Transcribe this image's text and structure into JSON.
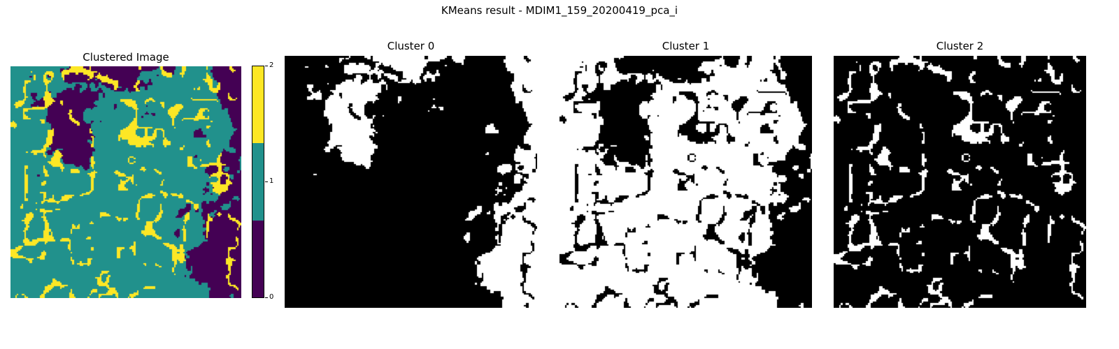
{
  "figure": {
    "title": "KMeans result - MDIM1_159_20200419_pca_i"
  },
  "clustered_panel": {
    "title": "Clustered Image"
  },
  "colorbar": {
    "colors": [
      "#440154",
      "#21918c",
      "#fde725"
    ],
    "ticks": [
      "0",
      "1",
      "2"
    ]
  },
  "cluster_panels": [
    {
      "title": "Cluster 0",
      "cluster": 0
    },
    {
      "title": "Cluster 1",
      "cluster": 1
    },
    {
      "title": "Cluster 2",
      "cluster": 2
    }
  ],
  "mask_colors": {
    "on": "#ffffff",
    "off": "#000000"
  }
}
